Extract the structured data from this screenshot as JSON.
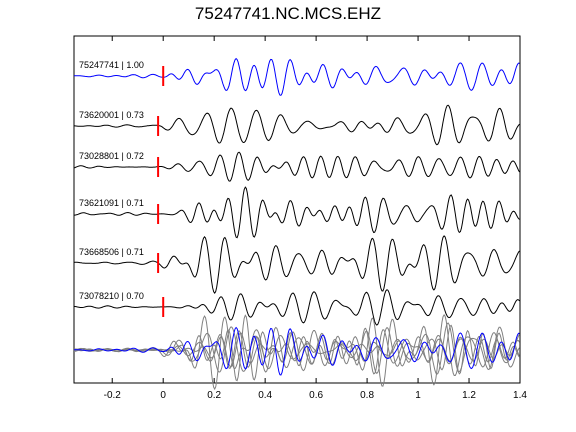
{
  "chart_data": {
    "type": "line",
    "title": "75247741.NC.MCS.EHZ",
    "xlim": [
      -0.35,
      1.4
    ],
    "xticks": [
      -0.2,
      0,
      0.2,
      0.4,
      0.6,
      0.8,
      1,
      1.2,
      1.4
    ],
    "xtick_labels": [
      "-0.2",
      "0",
      "0.2",
      "0.4",
      "0.6",
      "0.8",
      "1",
      "1.2",
      "1.4"
    ],
    "grid": false,
    "pick_time": 0,
    "traces": [
      {
        "label": "75247741 | 1.00",
        "color": "#0000ff",
        "pick_offset": 0.0
      },
      {
        "label": "73620001 | 0.73",
        "color": "#000000",
        "pick_offset": -0.02
      },
      {
        "label": "73028801 | 0.72",
        "color": "#000000",
        "pick_offset": -0.02
      },
      {
        "label": "73621091 | 0.71",
        "color": "#000000",
        "pick_offset": -0.02
      },
      {
        "label": "73668506 | 0.71",
        "color": "#000000",
        "pick_offset": -0.02
      },
      {
        "label": "73078210 | 0.70",
        "color": "#000000",
        "pick_offset": 0.0
      }
    ],
    "stack": {
      "reference_color": "#0000ff",
      "others_color": "#808080"
    },
    "pick_marker_color": "#ff0000"
  }
}
